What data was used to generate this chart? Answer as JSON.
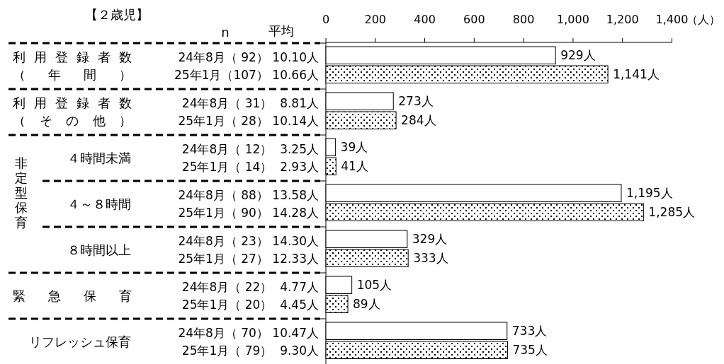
{
  "chart_data": {
    "type": "bar",
    "orientation": "horizontal",
    "title": "【２歳児】",
    "xlabel": "（人）",
    "categories": [
      "24年8月（ 92） 10.10人",
      "25年1月（107） 10.66人",
      "24年8月（ 31）  8.81人",
      "25年1月（ 28） 10.14人",
      "24年8月（ 12）  3.25人",
      "25年1月（ 14）  2.93人",
      "24年8月（ 88） 13.58人",
      "25年1月（ 90） 14.28人",
      "24年8月（ 23） 14.30人",
      "25年1月（ 27） 12.33人",
      "24年8月（ 22）  4.77人",
      "25年1月（ 20）  4.45人",
      "24年8月（ 70） 10.47人",
      "25年1月（ 79）  9.30人"
    ],
    "series": [
      {
        "color": "#ffffff",
        "values": [
          929,
          null,
          273,
          null,
          39,
          null,
          1195,
          null,
          329,
          null,
          105,
          null,
          733,
          null
        ],
        "value_labels": [
          "929人",
          null,
          "273人",
          null,
          "39人",
          null,
          "1,195人",
          null,
          "329人",
          null,
          "105人",
          null,
          "733人",
          null
        ]
      },
      {
        "color": "#000000",
        "values": [
          null,
          1141,
          null,
          284,
          null,
          41,
          null,
          1285,
          null,
          333,
          null,
          89,
          null,
          735
        ],
        "value_labels": [
          null,
          "1,141人",
          null,
          "284人",
          null,
          "41人",
          null,
          "1,285人",
          null,
          "333人",
          null,
          "89人",
          null,
          "735人"
        ]
      }
    ],
    "xlim": [
      0,
      1400
    ],
    "xticks": [
      0,
      200,
      400,
      600,
      800,
      {
        "value": 1000,
        "label": "1,000"
      },
      {
        "value": 1200,
        "label": "1,200"
      },
      {
        "value": 1400,
        "label": "1,400"
      }
    ],
    "annotations": [
      "n",
      "平均",
      "利用登録者数",
      "（年間）",
      "利用登録者数",
      "（その他）",
      "非定型保育",
      "４時間未満",
      "４～８時間",
      "８時間以上",
      "緊急保育",
      "リフレッシュ保育"
    ],
    "grid": false
  }
}
